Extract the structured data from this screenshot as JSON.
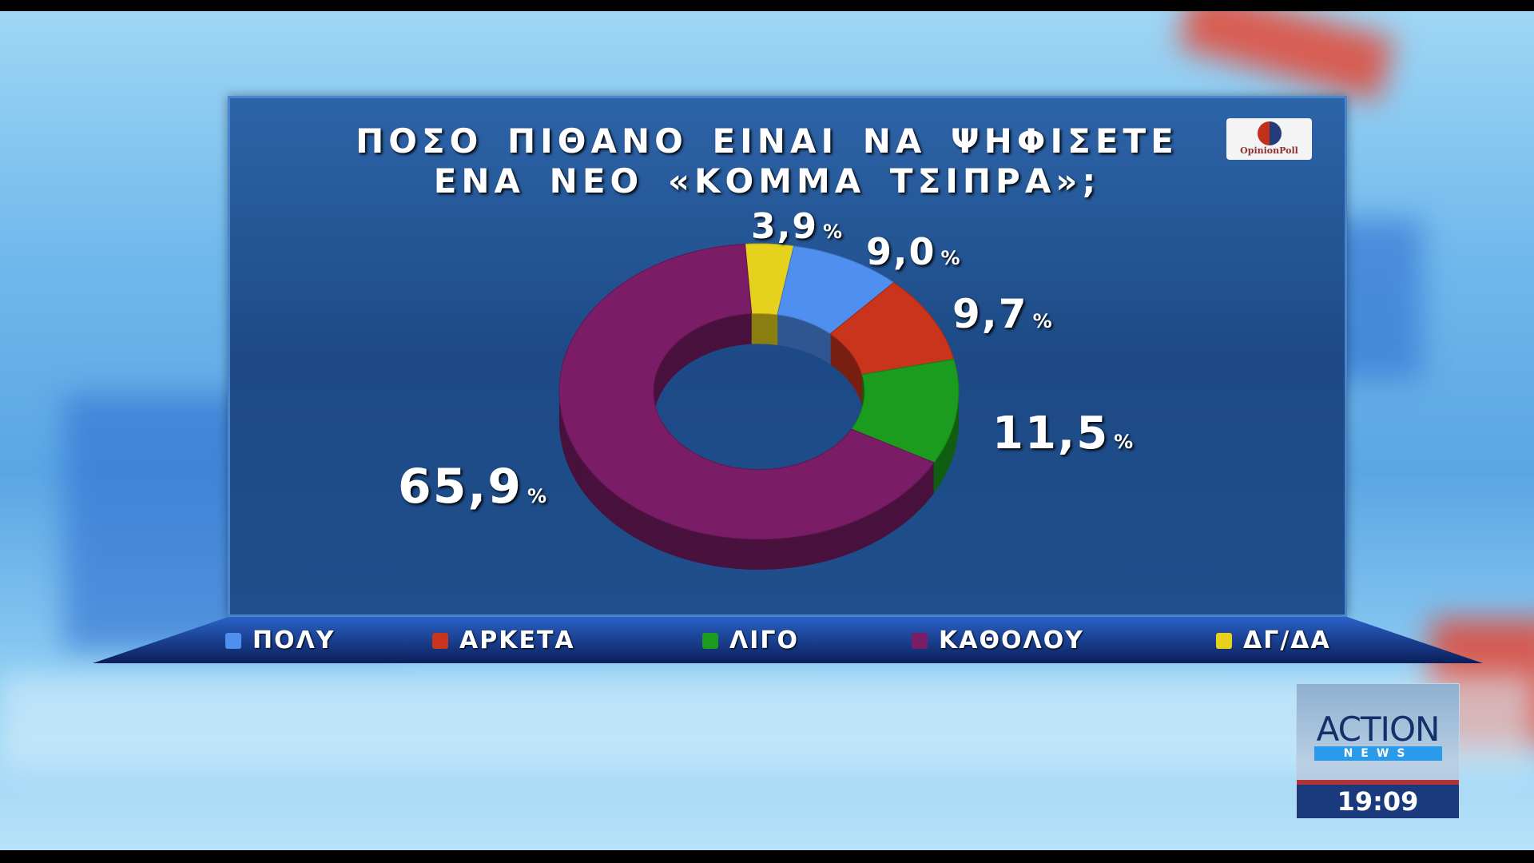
{
  "chart_data": {
    "type": "pie",
    "variant": "3d-donut",
    "title": "ΠΟΣΟ ΠΙΘΑΝΟ ΕΙΝΑΙ ΝΑ ΨΗΦΙΣΕΤΕ ΕΝΑ ΝΕΟ «ΚΟΜΜΑ ΤΣΙΠΡΑ»;",
    "title_lines": [
      "ΠΟΣΟ ΠΙΘΑΝΟ ΕΙΝΑΙ ΝΑ ΨΗΦΙΣΕΤΕ",
      "ΕΝΑ ΝΕΟ «ΚΟΜΜΑ ΤΣΙΠΡΑ»;"
    ],
    "legend_position": "bottom",
    "slices": [
      {
        "name": "ΔΓ/ΔΑ",
        "value": 3.9,
        "label": "3,9",
        "color": "#e6d21c"
      },
      {
        "name": "ΠΟΛΥ",
        "value": 9.0,
        "label": "9,0",
        "color": "#4f8ff0"
      },
      {
        "name": "ΑΡΚΕΤΑ",
        "value": 9.7,
        "label": "9,7",
        "color": "#c8341c"
      },
      {
        "name": "ΛΙΓΟ",
        "value": 11.5,
        "label": "11,5",
        "color": "#1c9c1e"
      },
      {
        "name": "ΚΑΘΟΛΟΥ",
        "value": 65.9,
        "label": "65,9",
        "color": "#7a1c66"
      }
    ],
    "unit": "%",
    "legend_order": [
      "ΠΟΛΥ",
      "ΑΡΚΕΤΑ",
      "ΛΙΓΟ",
      "ΚΑΘΟΛΟΥ",
      "ΔΓ/ΔΑ"
    ]
  },
  "logo": {
    "pollster": "OpinionPoll"
  },
  "channel": {
    "name": "ACTION",
    "sub": "NEWS",
    "time": "19:09"
  }
}
